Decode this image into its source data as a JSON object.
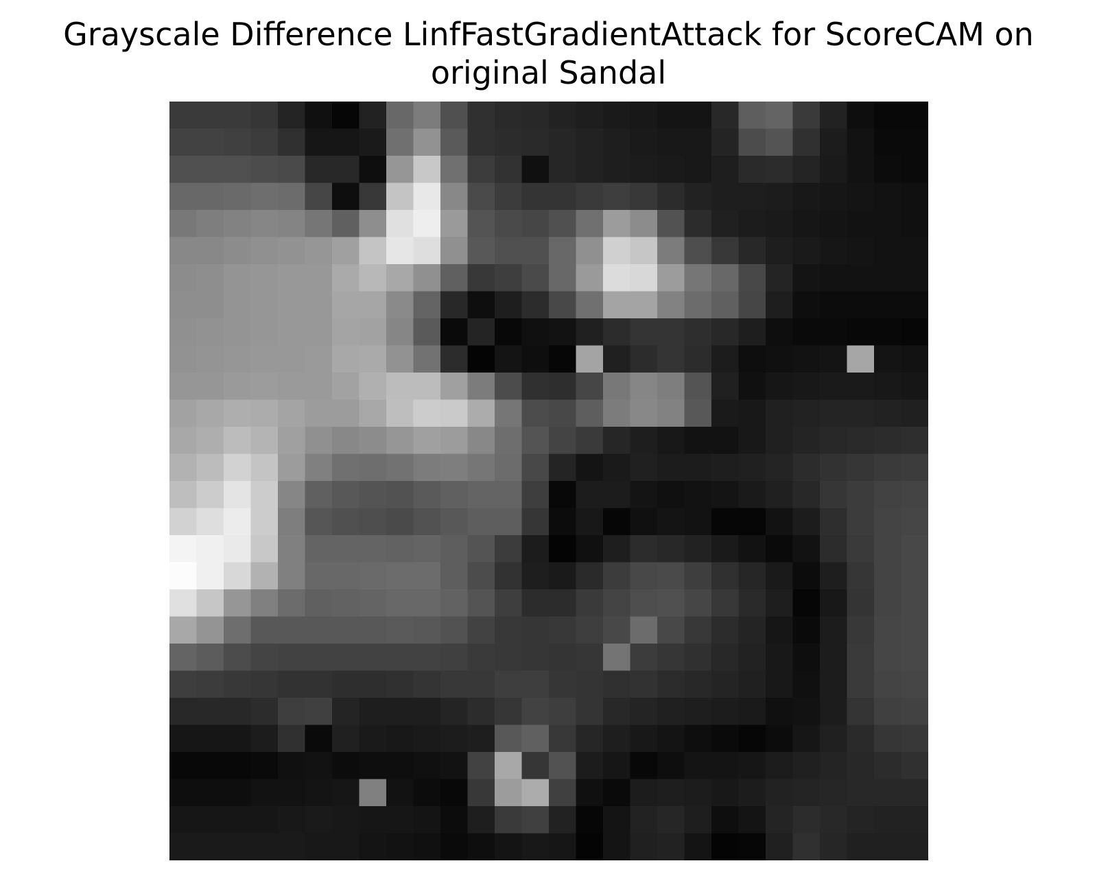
{
  "chart_data": {
    "type": "heatmap",
    "title_lines": [
      "Grayscale Difference LinfFastGradientAttack for ScoreCAM on",
      "original Sandal"
    ],
    "colormap": "gray",
    "axes_visible": false,
    "rows": 28,
    "cols": 28,
    "values": [
      [
        58,
        58,
        58,
        54,
        36,
        16,
        6,
        34,
        104,
        124,
        80,
        48,
        42,
        40,
        34,
        30,
        26,
        24,
        20,
        20,
        40,
        94,
        100,
        58,
        34,
        14,
        8,
        8
      ],
      [
        66,
        66,
        64,
        60,
        48,
        22,
        22,
        26,
        112,
        146,
        90,
        48,
        44,
        42,
        38,
        34,
        30,
        26,
        24,
        24,
        36,
        76,
        84,
        48,
        28,
        18,
        10,
        10
      ],
      [
        80,
        80,
        80,
        76,
        74,
        40,
        40,
        14,
        150,
        200,
        112,
        60,
        50,
        16,
        38,
        34,
        30,
        28,
        26,
        24,
        30,
        42,
        44,
        36,
        26,
        18,
        12,
        10
      ],
      [
        104,
        104,
        106,
        110,
        108,
        70,
        14,
        56,
        196,
        232,
        136,
        74,
        60,
        52,
        52,
        58,
        62,
        56,
        44,
        34,
        30,
        30,
        28,
        24,
        22,
        20,
        18,
        16
      ],
      [
        120,
        126,
        130,
        134,
        132,
        118,
        96,
        142,
        224,
        238,
        154,
        84,
        74,
        70,
        80,
        112,
        156,
        140,
        82,
        44,
        32,
        28,
        26,
        22,
        20,
        18,
        18,
        16
      ],
      [
        136,
        136,
        140,
        144,
        146,
        150,
        160,
        196,
        230,
        222,
        144,
        88,
        80,
        80,
        104,
        144,
        208,
        198,
        124,
        78,
        56,
        40,
        30,
        26,
        22,
        20,
        18,
        18
      ],
      [
        140,
        142,
        148,
        150,
        152,
        152,
        170,
        184,
        168,
        144,
        96,
        56,
        62,
        74,
        104,
        154,
        220,
        216,
        156,
        118,
        104,
        72,
        36,
        20,
        18,
        18,
        18,
        18
      ],
      [
        142,
        142,
        148,
        150,
        152,
        152,
        166,
        166,
        138,
        100,
        40,
        14,
        30,
        44,
        72,
        112,
        164,
        164,
        130,
        108,
        96,
        70,
        30,
        14,
        12,
        12,
        12,
        12
      ],
      [
        144,
        146,
        148,
        150,
        152,
        152,
        164,
        162,
        134,
        90,
        10,
        36,
        8,
        16,
        18,
        32,
        44,
        52,
        52,
        46,
        40,
        30,
        14,
        10,
        10,
        8,
        8,
        6
      ],
      [
        146,
        148,
        150,
        152,
        152,
        154,
        168,
        170,
        146,
        114,
        44,
        4,
        20,
        14,
        6,
        164,
        32,
        44,
        52,
        44,
        28,
        14,
        16,
        18,
        20,
        166,
        20,
        18
      ],
      [
        150,
        150,
        154,
        156,
        154,
        154,
        162,
        176,
        188,
        188,
        160,
        124,
        76,
        48,
        46,
        70,
        120,
        134,
        126,
        84,
        32,
        16,
        22,
        24,
        26,
        26,
        24,
        22
      ],
      [
        162,
        168,
        174,
        172,
        164,
        156,
        156,
        168,
        190,
        204,
        202,
        172,
        118,
        76,
        72,
        94,
        124,
        136,
        130,
        88,
        26,
        24,
        32,
        34,
        36,
        36,
        34,
        32
      ],
      [
        168,
        174,
        188,
        180,
        160,
        144,
        136,
        140,
        150,
        160,
        156,
        136,
        110,
        84,
        68,
        58,
        38,
        30,
        24,
        18,
        18,
        24,
        32,
        36,
        40,
        42,
        44,
        46
      ],
      [
        178,
        188,
        210,
        196,
        156,
        128,
        112,
        110,
        114,
        124,
        126,
        118,
        108,
        72,
        36,
        20,
        26,
        32,
        28,
        28,
        30,
        32,
        36,
        44,
        50,
        54,
        58,
        60
      ],
      [
        190,
        204,
        228,
        204,
        134,
        96,
        88,
        84,
        82,
        90,
        96,
        100,
        100,
        62,
        8,
        28,
        28,
        20,
        16,
        18,
        20,
        26,
        32,
        40,
        54,
        60,
        66,
        68
      ],
      [
        210,
        222,
        236,
        204,
        126,
        86,
        80,
        78,
        74,
        82,
        88,
        94,
        94,
        54,
        12,
        24,
        6,
        16,
        20,
        18,
        6,
        6,
        18,
        28,
        46,
        60,
        68,
        70
      ],
      [
        244,
        240,
        234,
        200,
        128,
        100,
        100,
        100,
        98,
        100,
        94,
        84,
        60,
        28,
        4,
        16,
        30,
        44,
        40,
        34,
        26,
        18,
        10,
        18,
        44,
        58,
        68,
        72
      ],
      [
        252,
        240,
        216,
        178,
        128,
        104,
        104,
        106,
        108,
        108,
        94,
        76,
        50,
        30,
        26,
        42,
        60,
        72,
        74,
        62,
        48,
        38,
        26,
        12,
        30,
        54,
        68,
        72
      ],
      [
        224,
        198,
        150,
        128,
        108,
        96,
        98,
        100,
        104,
        104,
        98,
        84,
        62,
        44,
        44,
        58,
        68,
        78,
        80,
        70,
        56,
        42,
        30,
        6,
        24,
        52,
        68,
        72
      ],
      [
        168,
        148,
        110,
        88,
        88,
        88,
        88,
        88,
        90,
        88,
        82,
        66,
        56,
        54,
        56,
        62,
        72,
        108,
        72,
        56,
        44,
        36,
        22,
        10,
        28,
        56,
        70,
        72
      ],
      [
        100,
        92,
        76,
        68,
        66,
        66,
        66,
        66,
        66,
        66,
        64,
        58,
        56,
        54,
        52,
        54,
        116,
        60,
        54,
        48,
        40,
        34,
        24,
        14,
        28,
        58,
        70,
        72
      ],
      [
        62,
        60,
        56,
        54,
        50,
        50,
        46,
        46,
        48,
        52,
        56,
        56,
        62,
        62,
        54,
        52,
        48,
        50,
        44,
        40,
        36,
        32,
        24,
        16,
        28,
        58,
        68,
        70
      ],
      [
        40,
        40,
        40,
        44,
        62,
        64,
        36,
        30,
        30,
        30,
        36,
        44,
        54,
        66,
        62,
        52,
        40,
        36,
        32,
        30,
        28,
        26,
        16,
        18,
        28,
        52,
        64,
        66
      ],
      [
        22,
        22,
        22,
        28,
        48,
        10,
        32,
        26,
        24,
        26,
        28,
        30,
        88,
        96,
        56,
        38,
        30,
        24,
        20,
        14,
        10,
        6,
        12,
        22,
        32,
        42,
        54,
        56
      ],
      [
        8,
        8,
        8,
        10,
        16,
        18,
        12,
        14,
        14,
        16,
        18,
        66,
        168,
        54,
        82,
        28,
        22,
        8,
        14,
        20,
        20,
        22,
        28,
        32,
        36,
        40,
        44,
        48
      ],
      [
        14,
        14,
        14,
        18,
        18,
        20,
        22,
        128,
        18,
        12,
        8,
        56,
        156,
        172,
        64,
        16,
        10,
        28,
        30,
        28,
        24,
        28,
        34,
        36,
        38,
        40,
        40,
        40
      ],
      [
        22,
        22,
        22,
        22,
        24,
        26,
        24,
        22,
        22,
        20,
        12,
        30,
        58,
        64,
        34,
        6,
        20,
        34,
        38,
        30,
        14,
        20,
        36,
        44,
        40,
        36,
        34,
        34
      ],
      [
        26,
        26,
        26,
        26,
        26,
        24,
        24,
        20,
        18,
        16,
        10,
        14,
        20,
        24,
        22,
        4,
        20,
        32,
        34,
        20,
        4,
        6,
        32,
        48,
        38,
        32,
        32,
        32
      ]
    ]
  }
}
